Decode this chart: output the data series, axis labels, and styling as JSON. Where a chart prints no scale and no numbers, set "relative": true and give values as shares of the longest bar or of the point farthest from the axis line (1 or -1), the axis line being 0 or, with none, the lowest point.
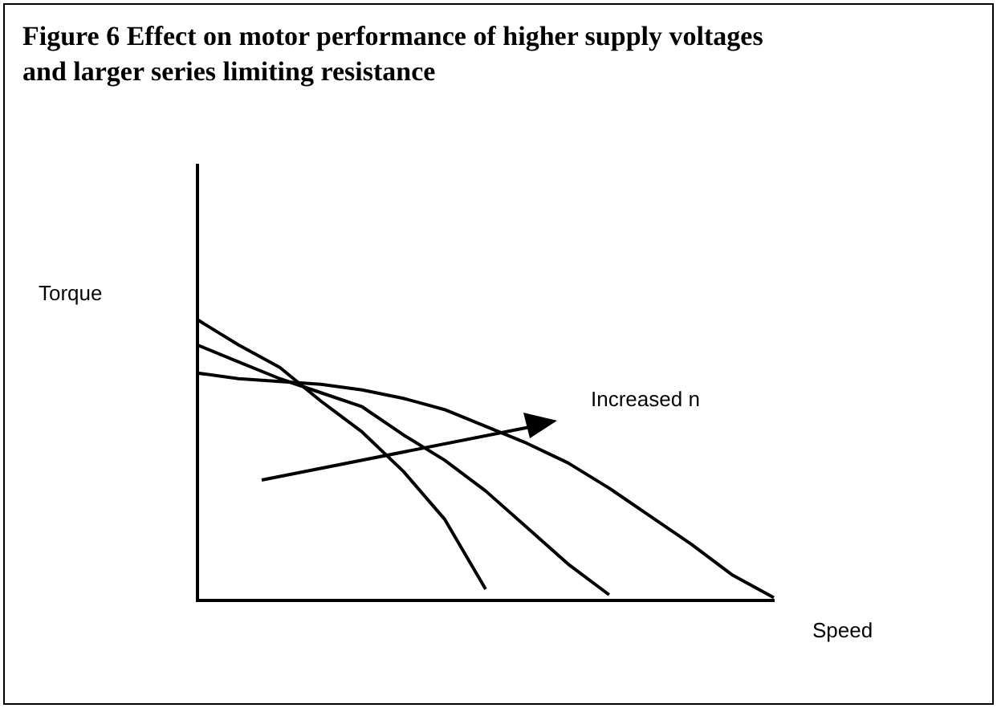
{
  "chart_data": {
    "type": "line",
    "title": "Figure 6 Effect on motor performance of higher supply voltages and larger series limiting resistance",
    "xlabel": "Speed",
    "ylabel": "Torque",
    "relative": true,
    "grid": false,
    "legend": false,
    "marker": "none",
    "line_style": "solid",
    "categories": [
      null,
      null,
      null,
      null,
      null,
      null,
      null,
      null,
      null,
      null,
      null,
      null,
      null,
      null,
      null
    ],
    "annotations": [
      "Increased n"
    ],
    "series": [
      {
        "color": "#000000",
        "values": [
          1,
          0.91,
          0.83,
          0.71,
          0.6,
          0.46,
          0.29,
          0.04,
          null,
          null,
          null,
          null,
          null,
          null,
          null
        ]
      },
      {
        "color": "#000000",
        "values": [
          0.91,
          0.85,
          0.79,
          0.74,
          0.69,
          0.59,
          0.5,
          0.39,
          0.26,
          0.13,
          0.02,
          null,
          null,
          null,
          null
        ]
      },
      {
        "color": "#000000",
        "values": [
          0.81,
          0.79,
          0.78,
          0.77,
          0.75,
          0.72,
          0.68,
          0.62,
          0.56,
          0.49,
          0.4,
          0.3,
          0.2,
          0.09,
          0.01
        ]
      }
    ]
  }
}
